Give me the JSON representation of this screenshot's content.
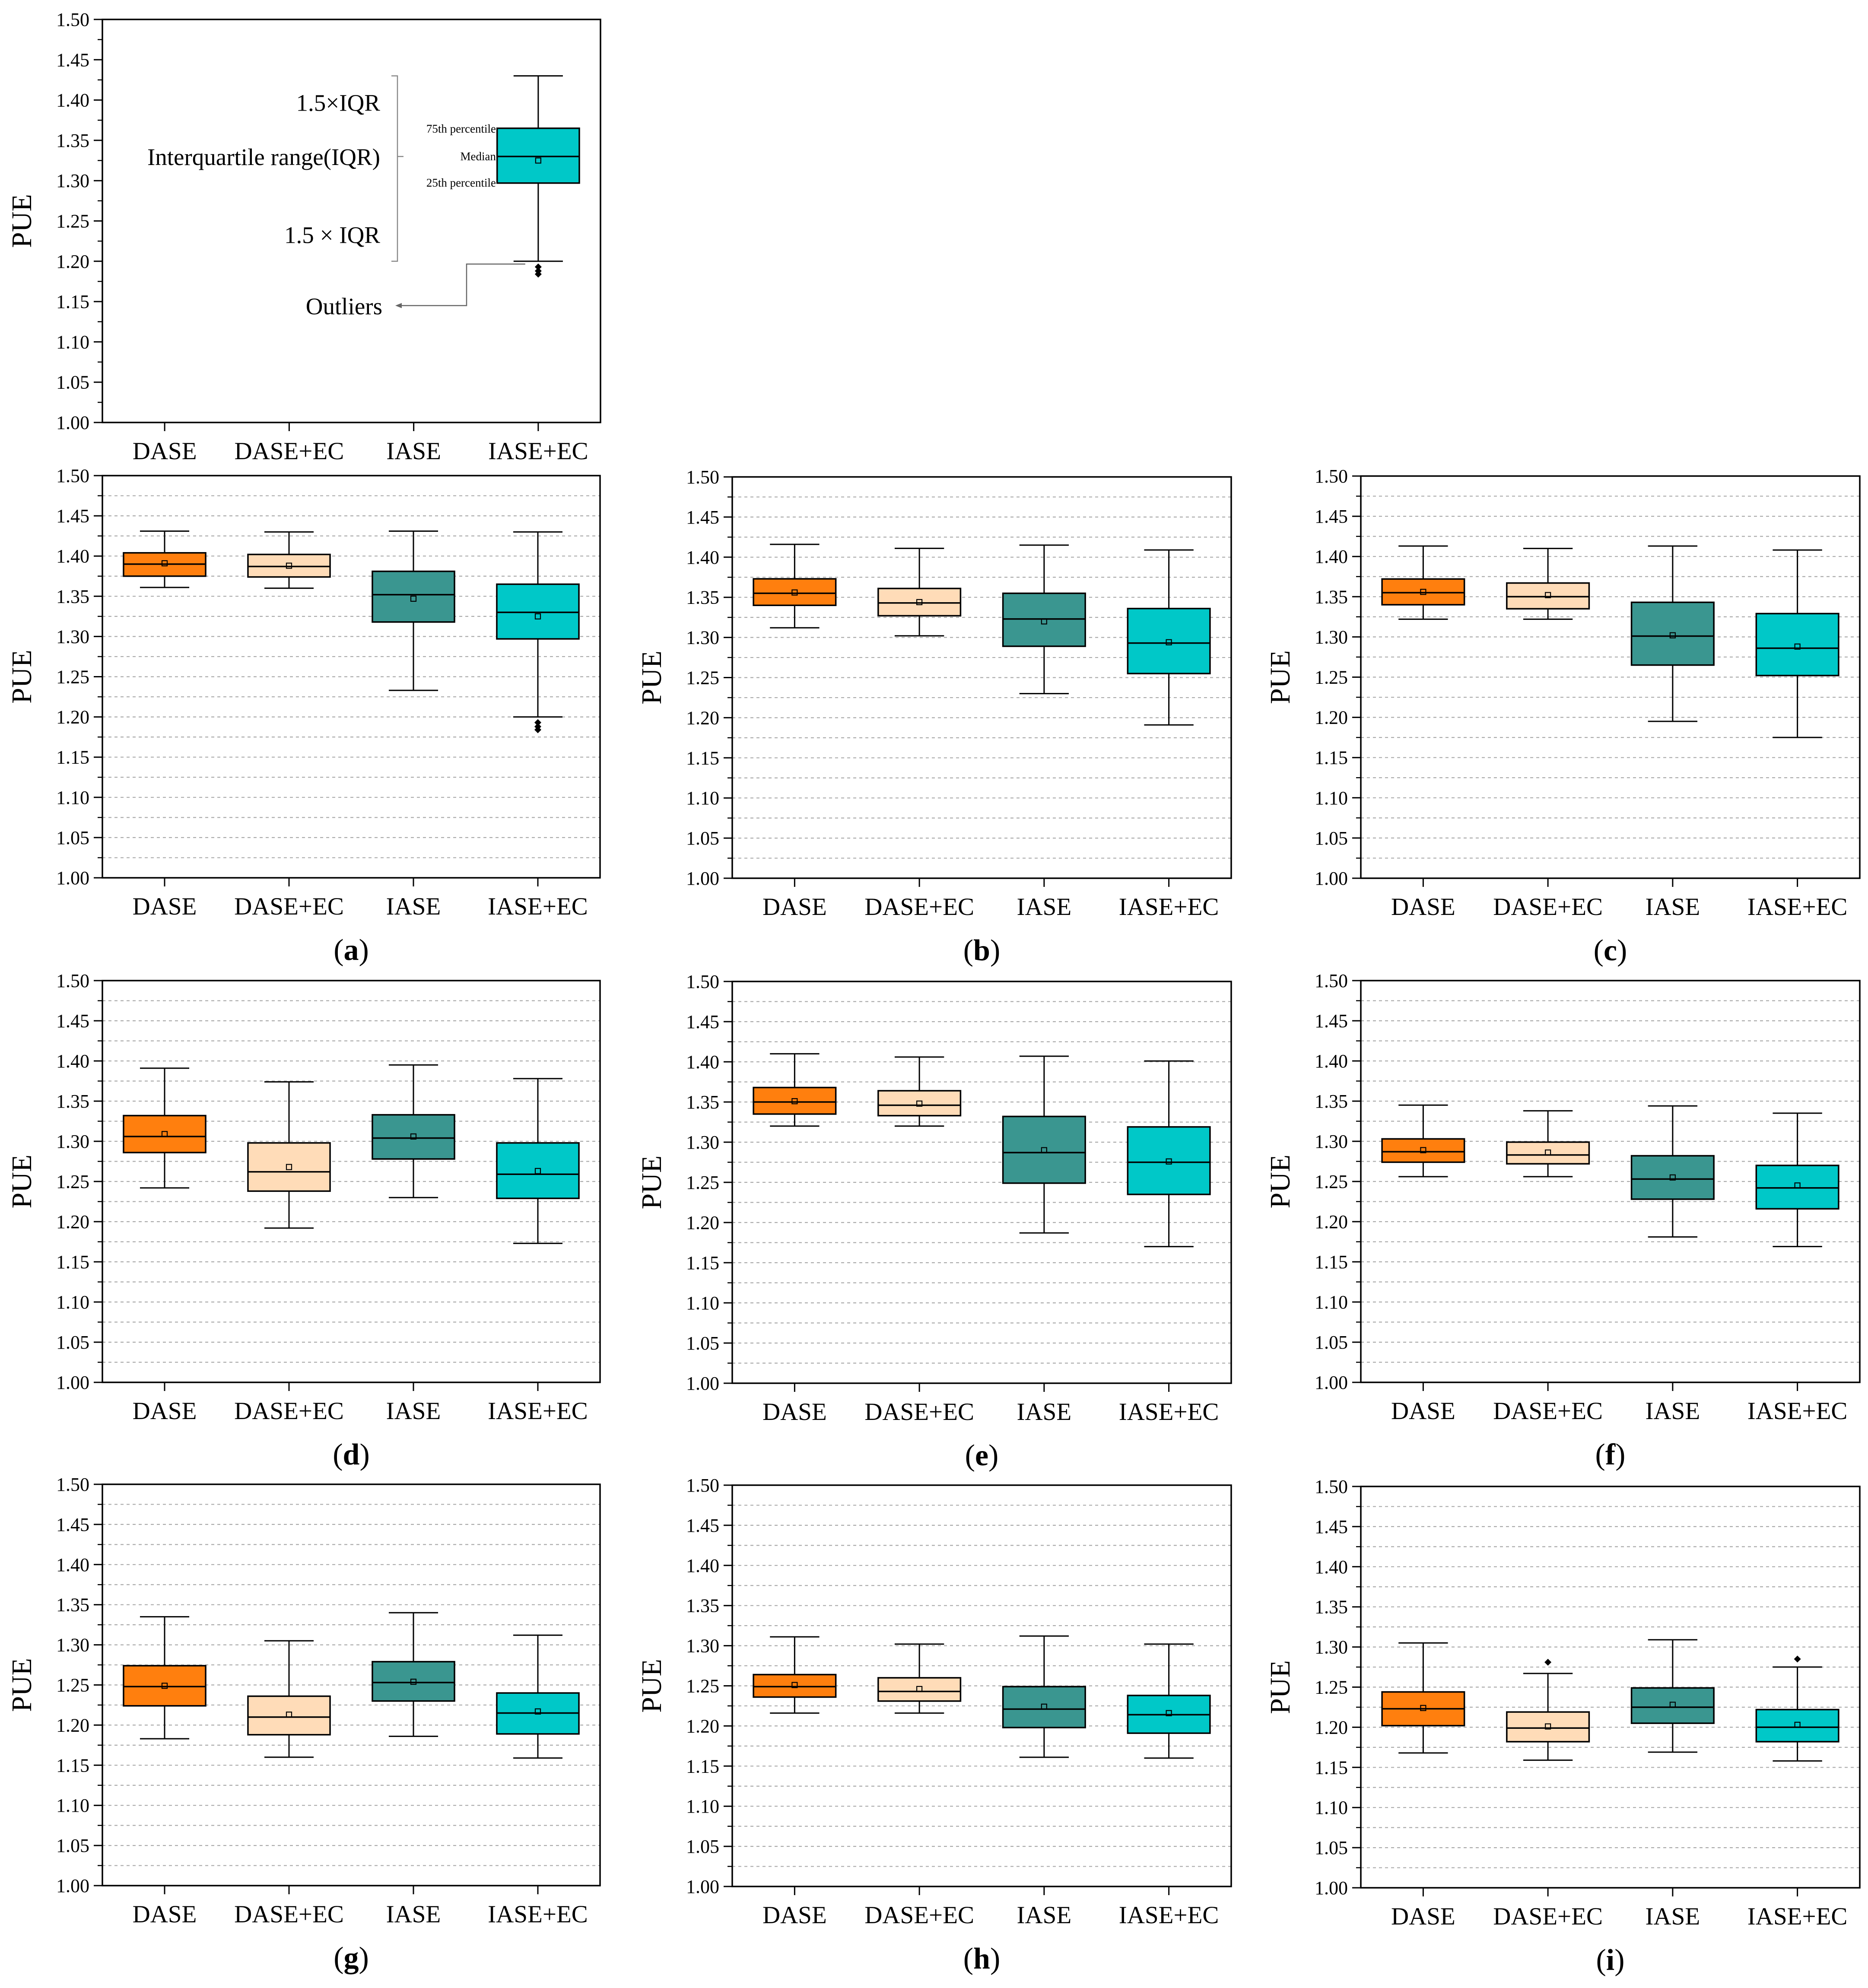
{
  "figure": {
    "colors": {
      "DASE": "#ff7f0e",
      "DASE+EC": "#ffdcb8",
      "IASE": "#3a9690",
      "IASE+EC": "#00c8c8",
      "grid": "#aaaaaa",
      "axis": "#000000"
    },
    "legend_panel": {
      "annotation_labels": {
        "upper_whisker": "1.5×IQR",
        "iqr": "Interquartile range(IQR)",
        "lower_whisker": "1.5 × IQR",
        "outliers": "Outliers",
        "p75": "75th percentile",
        "median": "Median",
        "p25": "25th percentile"
      }
    }
  },
  "chart_data": [
    {
      "id": "legend",
      "type": "box",
      "panel_label": "",
      "ylabel": "PUE",
      "ylim": [
        1.0,
        1.5
      ],
      "yticks": [
        "1.00",
        "1.05",
        "1.10",
        "1.15",
        "1.20",
        "1.25",
        "1.30",
        "1.35",
        "1.40",
        "1.45",
        "1.50"
      ],
      "categories": [
        "DASE",
        "DASE+EC",
        "IASE",
        "IASE+EC"
      ],
      "grid": false,
      "boxes": [
        null,
        null,
        null,
        {
          "whisker_low": 1.2,
          "q1": 1.297,
          "median": 1.33,
          "q3": 1.365,
          "whisker_high": 1.43,
          "mean": 1.325,
          "outliers": [
            1.193,
            1.188,
            1.184
          ]
        }
      ]
    },
    {
      "id": "a",
      "type": "box",
      "panel_label": "a",
      "ylabel": "PUE",
      "ylim": [
        1.0,
        1.5
      ],
      "yticks": [
        "1.00",
        "1.05",
        "1.10",
        "1.15",
        "1.20",
        "1.25",
        "1.30",
        "1.35",
        "1.40",
        "1.45",
        "1.50"
      ],
      "categories": [
        "DASE",
        "DASE+EC",
        "IASE",
        "IASE+EC"
      ],
      "grid": true,
      "boxes": [
        {
          "whisker_low": 1.361,
          "q1": 1.375,
          "median": 1.39,
          "q3": 1.404,
          "whisker_high": 1.431,
          "mean": 1.391,
          "outliers": []
        },
        {
          "whisker_low": 1.36,
          "q1": 1.374,
          "median": 1.387,
          "q3": 1.402,
          "whisker_high": 1.43,
          "mean": 1.388,
          "outliers": []
        },
        {
          "whisker_low": 1.233,
          "q1": 1.318,
          "median": 1.352,
          "q3": 1.381,
          "whisker_high": 1.431,
          "mean": 1.347,
          "outliers": []
        },
        {
          "whisker_low": 1.2,
          "q1": 1.297,
          "median": 1.33,
          "q3": 1.365,
          "whisker_high": 1.43,
          "mean": 1.325,
          "outliers": [
            1.193,
            1.188,
            1.184
          ]
        }
      ]
    },
    {
      "id": "b",
      "type": "box",
      "panel_label": "b",
      "ylabel": "PUE",
      "ylim": [
        1.0,
        1.5
      ],
      "yticks": [
        "1.00",
        "1.05",
        "1.10",
        "1.15",
        "1.20",
        "1.25",
        "1.30",
        "1.35",
        "1.40",
        "1.45",
        "1.50"
      ],
      "categories": [
        "DASE",
        "DASE+EC",
        "IASE",
        "IASE+EC"
      ],
      "grid": true,
      "boxes": [
        {
          "whisker_low": 1.312,
          "q1": 1.34,
          "median": 1.355,
          "q3": 1.373,
          "whisker_high": 1.416,
          "mean": 1.356,
          "outliers": []
        },
        {
          "whisker_low": 1.302,
          "q1": 1.327,
          "median": 1.343,
          "q3": 1.361,
          "whisker_high": 1.411,
          "mean": 1.344,
          "outliers": []
        },
        {
          "whisker_low": 1.23,
          "q1": 1.289,
          "median": 1.323,
          "q3": 1.355,
          "whisker_high": 1.415,
          "mean": 1.32,
          "outliers": []
        },
        {
          "whisker_low": 1.191,
          "q1": 1.255,
          "median": 1.293,
          "q3": 1.336,
          "whisker_high": 1.409,
          "mean": 1.294,
          "outliers": []
        }
      ]
    },
    {
      "id": "c",
      "type": "box",
      "panel_label": "c",
      "ylabel": "PUE",
      "ylim": [
        1.0,
        1.5
      ],
      "yticks": [
        "1.00",
        "1.05",
        "1.10",
        "1.15",
        "1.20",
        "1.25",
        "1.30",
        "1.35",
        "1.40",
        "1.45",
        "1.50"
      ],
      "categories": [
        "DASE",
        "DASE+EC",
        "IASE",
        "IASE+EC"
      ],
      "grid": true,
      "boxes": [
        {
          "whisker_low": 1.322,
          "q1": 1.34,
          "median": 1.355,
          "q3": 1.372,
          "whisker_high": 1.413,
          "mean": 1.356,
          "outliers": []
        },
        {
          "whisker_low": 1.322,
          "q1": 1.335,
          "median": 1.35,
          "q3": 1.367,
          "whisker_high": 1.41,
          "mean": 1.352,
          "outliers": []
        },
        {
          "whisker_low": 1.195,
          "q1": 1.265,
          "median": 1.301,
          "q3": 1.343,
          "whisker_high": 1.413,
          "mean": 1.302,
          "outliers": []
        },
        {
          "whisker_low": 1.175,
          "q1": 1.252,
          "median": 1.286,
          "q3": 1.329,
          "whisker_high": 1.408,
          "mean": 1.288,
          "outliers": []
        }
      ]
    },
    {
      "id": "d",
      "type": "box",
      "panel_label": "d",
      "ylabel": "PUE",
      "ylim": [
        1.0,
        1.5
      ],
      "yticks": [
        "1.00",
        "1.05",
        "1.10",
        "1.15",
        "1.20",
        "1.25",
        "1.30",
        "1.35",
        "1.40",
        "1.45",
        "1.50"
      ],
      "categories": [
        "DASE",
        "DASE+EC",
        "IASE",
        "IASE+EC"
      ],
      "grid": true,
      "boxes": [
        {
          "whisker_low": 1.242,
          "q1": 1.286,
          "median": 1.306,
          "q3": 1.332,
          "whisker_high": 1.391,
          "mean": 1.309,
          "outliers": []
        },
        {
          "whisker_low": 1.192,
          "q1": 1.238,
          "median": 1.262,
          "q3": 1.298,
          "whisker_high": 1.374,
          "mean": 1.268,
          "outliers": []
        },
        {
          "whisker_low": 1.23,
          "q1": 1.278,
          "median": 1.304,
          "q3": 1.333,
          "whisker_high": 1.395,
          "mean": 1.306,
          "outliers": []
        },
        {
          "whisker_low": 1.173,
          "q1": 1.229,
          "median": 1.259,
          "q3": 1.298,
          "whisker_high": 1.378,
          "mean": 1.263,
          "outliers": []
        }
      ]
    },
    {
      "id": "e",
      "type": "box",
      "panel_label": "e",
      "ylabel": "PUE",
      "ylim": [
        1.0,
        1.5
      ],
      "yticks": [
        "1.00",
        "1.05",
        "1.10",
        "1.15",
        "1.20",
        "1.25",
        "1.30",
        "1.35",
        "1.40",
        "1.45",
        "1.50"
      ],
      "categories": [
        "DASE",
        "DASE+EC",
        "IASE",
        "IASE+EC"
      ],
      "grid": true,
      "boxes": [
        {
          "whisker_low": 1.32,
          "q1": 1.335,
          "median": 1.35,
          "q3": 1.368,
          "whisker_high": 1.41,
          "mean": 1.351,
          "outliers": []
        },
        {
          "whisker_low": 1.32,
          "q1": 1.333,
          "median": 1.346,
          "q3": 1.364,
          "whisker_high": 1.406,
          "mean": 1.348,
          "outliers": []
        },
        {
          "whisker_low": 1.187,
          "q1": 1.249,
          "median": 1.287,
          "q3": 1.332,
          "whisker_high": 1.407,
          "mean": 1.29,
          "outliers": []
        },
        {
          "whisker_low": 1.17,
          "q1": 1.235,
          "median": 1.275,
          "q3": 1.319,
          "whisker_high": 1.401,
          "mean": 1.276,
          "outliers": []
        }
      ]
    },
    {
      "id": "f",
      "type": "box",
      "panel_label": "f",
      "ylabel": "PUE",
      "ylim": [
        1.0,
        1.5
      ],
      "yticks": [
        "1.00",
        "1.05",
        "1.10",
        "1.15",
        "1.20",
        "1.25",
        "1.30",
        "1.35",
        "1.40",
        "1.45",
        "1.50"
      ],
      "categories": [
        "DASE",
        "DASE+EC",
        "IASE",
        "IASE+EC"
      ],
      "grid": true,
      "boxes": [
        {
          "whisker_low": 1.256,
          "q1": 1.274,
          "median": 1.287,
          "q3": 1.303,
          "whisker_high": 1.345,
          "mean": 1.289,
          "outliers": []
        },
        {
          "whisker_low": 1.256,
          "q1": 1.272,
          "median": 1.283,
          "q3": 1.299,
          "whisker_high": 1.338,
          "mean": 1.286,
          "outliers": []
        },
        {
          "whisker_low": 1.181,
          "q1": 1.228,
          "median": 1.253,
          "q3": 1.282,
          "whisker_high": 1.344,
          "mean": 1.255,
          "outliers": []
        },
        {
          "whisker_low": 1.169,
          "q1": 1.216,
          "median": 1.242,
          "q3": 1.27,
          "whisker_high": 1.335,
          "mean": 1.245,
          "outliers": []
        }
      ]
    },
    {
      "id": "g",
      "type": "box",
      "panel_label": "g",
      "ylabel": "PUE",
      "ylim": [
        1.0,
        1.5
      ],
      "yticks": [
        "1.00",
        "1.05",
        "1.10",
        "1.15",
        "1.20",
        "1.25",
        "1.30",
        "1.35",
        "1.40",
        "1.45",
        "1.50"
      ],
      "categories": [
        "DASE",
        "DASE+EC",
        "IASE",
        "IASE+EC"
      ],
      "grid": true,
      "boxes": [
        {
          "whisker_low": 1.183,
          "q1": 1.224,
          "median": 1.248,
          "q3": 1.274,
          "whisker_high": 1.335,
          "mean": 1.249,
          "outliers": []
        },
        {
          "whisker_low": 1.16,
          "q1": 1.188,
          "median": 1.21,
          "q3": 1.236,
          "whisker_high": 1.305,
          "mean": 1.213,
          "outliers": []
        },
        {
          "whisker_low": 1.186,
          "q1": 1.23,
          "median": 1.253,
          "q3": 1.279,
          "whisker_high": 1.34,
          "mean": 1.254,
          "outliers": []
        },
        {
          "whisker_low": 1.159,
          "q1": 1.189,
          "median": 1.215,
          "q3": 1.24,
          "whisker_high": 1.312,
          "mean": 1.217,
          "outliers": []
        }
      ]
    },
    {
      "id": "h",
      "type": "box",
      "panel_label": "h",
      "ylabel": "PUE",
      "ylim": [
        1.0,
        1.5
      ],
      "yticks": [
        "1.00",
        "1.05",
        "1.10",
        "1.15",
        "1.20",
        "1.25",
        "1.30",
        "1.35",
        "1.40",
        "1.45",
        "1.50"
      ],
      "categories": [
        "DASE",
        "DASE+EC",
        "IASE",
        "IASE+EC"
      ],
      "grid": true,
      "boxes": [
        {
          "whisker_low": 1.216,
          "q1": 1.236,
          "median": 1.249,
          "q3": 1.264,
          "whisker_high": 1.311,
          "mean": 1.251,
          "outliers": []
        },
        {
          "whisker_low": 1.216,
          "q1": 1.231,
          "median": 1.243,
          "q3": 1.26,
          "whisker_high": 1.302,
          "mean": 1.246,
          "outliers": []
        },
        {
          "whisker_low": 1.161,
          "q1": 1.198,
          "median": 1.221,
          "q3": 1.249,
          "whisker_high": 1.312,
          "mean": 1.224,
          "outliers": []
        },
        {
          "whisker_low": 1.16,
          "q1": 1.191,
          "median": 1.214,
          "q3": 1.238,
          "whisker_high": 1.302,
          "mean": 1.216,
          "outliers": []
        }
      ]
    },
    {
      "id": "i",
      "type": "box",
      "panel_label": "i",
      "ylabel": "PUE",
      "ylim": [
        1.0,
        1.5
      ],
      "yticks": [
        "1.00",
        "1.05",
        "1.10",
        "1.15",
        "1.20",
        "1.25",
        "1.30",
        "1.35",
        "1.40",
        "1.45",
        "1.50"
      ],
      "categories": [
        "DASE",
        "DASE+EC",
        "IASE",
        "IASE+EC"
      ],
      "grid": true,
      "boxes": [
        {
          "whisker_low": 1.168,
          "q1": 1.202,
          "median": 1.223,
          "q3": 1.244,
          "whisker_high": 1.305,
          "mean": 1.224,
          "outliers": []
        },
        {
          "whisker_low": 1.159,
          "q1": 1.182,
          "median": 1.199,
          "q3": 1.219,
          "whisker_high": 1.267,
          "mean": 1.201,
          "outliers": [
            1.281
          ]
        },
        {
          "whisker_low": 1.169,
          "q1": 1.205,
          "median": 1.225,
          "q3": 1.249,
          "whisker_high": 1.309,
          "mean": 1.228,
          "outliers": []
        },
        {
          "whisker_low": 1.158,
          "q1": 1.182,
          "median": 1.2,
          "q3": 1.222,
          "whisker_high": 1.275,
          "mean": 1.203,
          "outliers": [
            1.285
          ]
        }
      ]
    }
  ]
}
